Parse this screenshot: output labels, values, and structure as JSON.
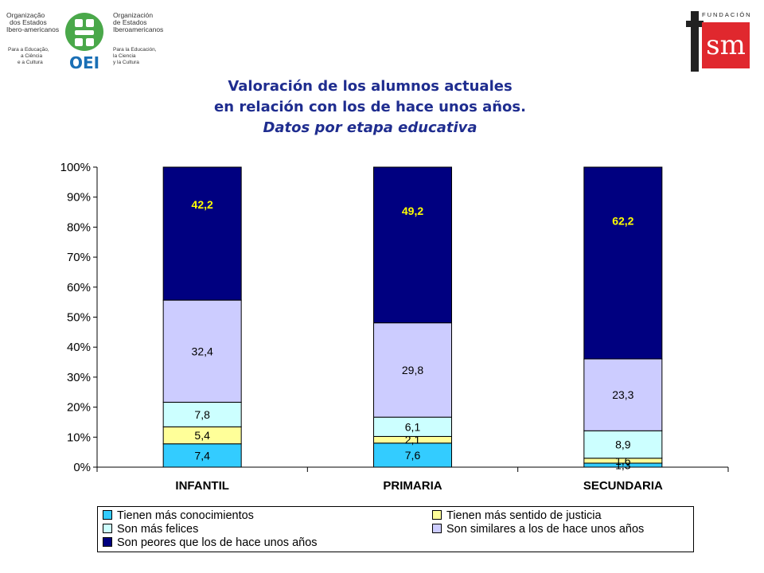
{
  "logos": {
    "oei_left": [
      "Organização",
      "dos Estados",
      "Ibero-americanos",
      "Para a Educação,",
      "a Ciência",
      "e a Cultura"
    ],
    "oei_right": [
      "Organización",
      "de Estados",
      "Iberoamericanos",
      "Para la Educación,",
      "la Ciencia",
      "y la Cultura"
    ],
    "oei_mark": "OEI",
    "fsm_top": "FUNDACIÓN",
    "fsm_mark": "sm"
  },
  "title": {
    "line1": "Valoración  de los alumnos actuales",
    "line2": "en relación con los de hace unos años.",
    "line3": "Datos por etapa educativa"
  },
  "colors": {
    "conocimientos": "#33ccff",
    "justicia": "#ffff99",
    "felices": "#ccffff",
    "similares": "#ccccff",
    "peores": "#000080",
    "title": "#1f2d8f",
    "label_highlight": "#ffff00"
  },
  "chart_data": {
    "type": "bar",
    "stacked": true,
    "percent": true,
    "categories": [
      "INFANTIL",
      "PRIMARIA",
      "SECUNDARIA"
    ],
    "series": [
      {
        "name": "Tienen más conocimientos",
        "values": [
          7.4,
          7.6,
          1.3
        ],
        "labels": [
          "7,4",
          "7,6",
          "1,3"
        ],
        "color": "#33ccff"
      },
      {
        "name": "Tienen más sentido de justicia",
        "values": [
          5.4,
          2.1,
          1.6
        ],
        "labels": [
          "5,4",
          "2,1",
          "1,6"
        ],
        "color": "#ffff99"
      },
      {
        "name": "Son más felices",
        "values": [
          7.8,
          6.1,
          8.9
        ],
        "labels": [
          "7,8",
          "6,1",
          "8,9"
        ],
        "color": "#ccffff"
      },
      {
        "name": "Son similares a los de hace unos años",
        "values": [
          32.4,
          29.8,
          23.3
        ],
        "labels": [
          "32,4",
          "29,8",
          "23,3"
        ],
        "color": "#ccccff"
      },
      {
        "name": "Son peores que los de hace unos años",
        "values": [
          42.2,
          49.2,
          62.2
        ],
        "labels": [
          "42,2",
          "49,2",
          "62,2"
        ],
        "color": "#000080"
      }
    ],
    "yticks": [
      "0%",
      "10%",
      "20%",
      "30%",
      "40%",
      "50%",
      "60%",
      "70%",
      "80%",
      "90%",
      "100%"
    ],
    "ylim": [
      0,
      100
    ],
    "legend": "bottom"
  }
}
